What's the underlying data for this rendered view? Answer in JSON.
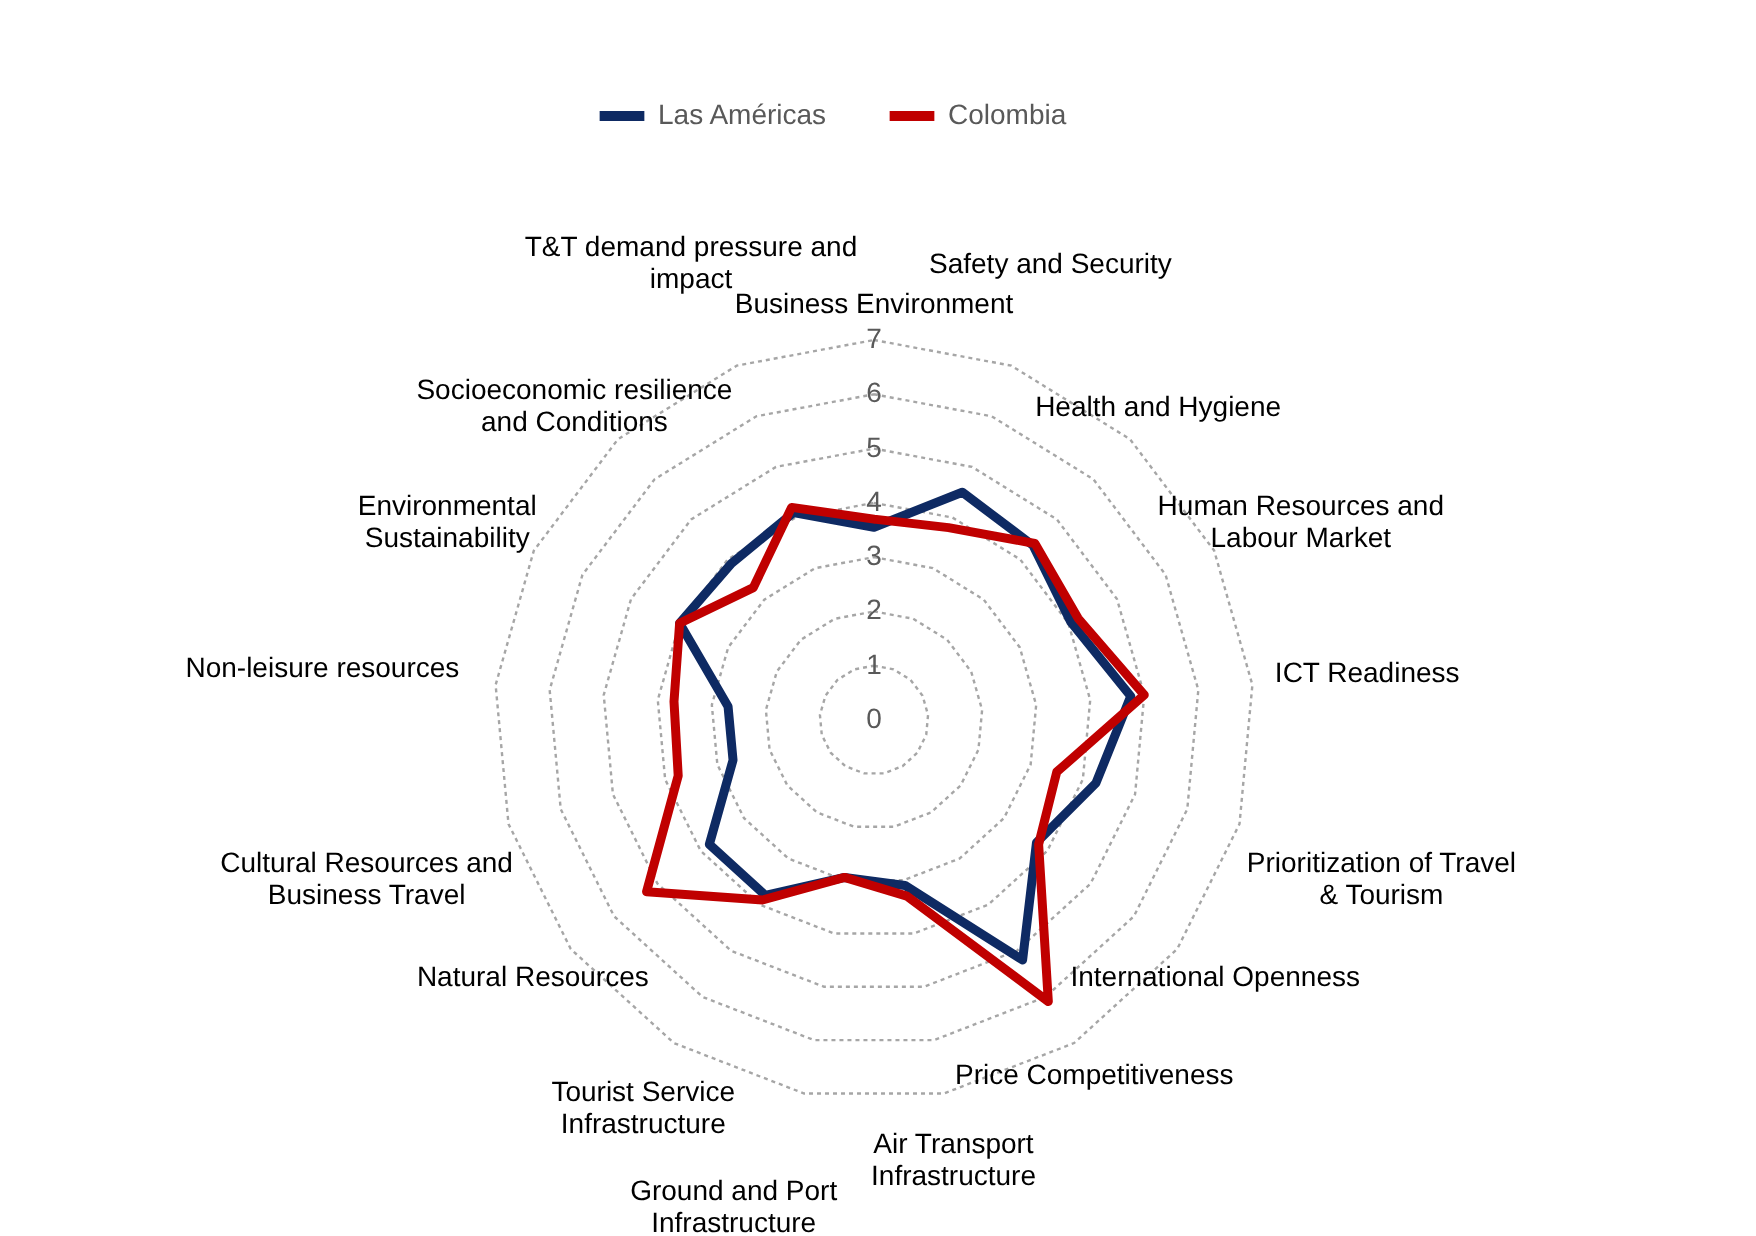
{
  "chart_data": {
    "type": "radar",
    "categories": [
      "Business Environment",
      "Safety and Security",
      "Health and Hygiene",
      "Human Resources and Labour Market",
      "ICT Readiness",
      "Prioritization of Travel & Tourism",
      "International Openness",
      "Price Competitiveness",
      "Air Transport Infrastructure",
      "Ground and Port Infrastructure",
      "Tourist Service Infrastructure",
      "Natural Resources",
      "Cultural Resources and Business Travel",
      "Non-leisure resources",
      "Environmental Sustainability",
      "Socioeconomic resilience and Conditions",
      "T&T demand pressure and impact"
    ],
    "series": [
      {
        "name": "Las Américas",
        "color": "#0e2a63",
        "values": [
          3.55,
          4.5,
          4.35,
          4.05,
          4.75,
          4.25,
          3.75,
          5.2,
          3.1,
          2.95,
          3.8,
          3.8,
          2.7,
          2.7,
          4.0,
          3.9,
          4.1
        ]
      },
      {
        "name": "Colombia",
        "color": "#c00000",
        "values": [
          3.7,
          3.8,
          4.4,
          4.2,
          5.0,
          3.5,
          3.8,
          6.1,
          3.3,
          2.95,
          3.9,
          5.25,
          3.75,
          3.7,
          4.0,
          3.3,
          4.2
        ]
      }
    ],
    "ylim": [
      0,
      7
    ],
    "yticks": [
      0,
      1,
      2,
      3,
      4,
      5,
      6,
      7
    ],
    "grid": true,
    "legend": "top"
  }
}
